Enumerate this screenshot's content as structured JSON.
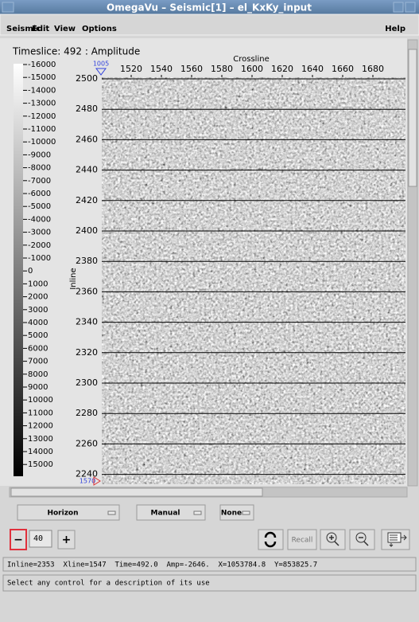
{
  "window": {
    "title": "OmegaVu – Seismic[1] – el_KxKy_input"
  },
  "menu": {
    "items": [
      "Seismic",
      "Edit",
      "View",
      "Options"
    ],
    "help": "Help"
  },
  "plot": {
    "title": "Timeslice: 492 : Amplitude",
    "x_label": "Crossline",
    "y_label": "Inline",
    "x_ticks": [
      1520,
      1540,
      1560,
      1580,
      1600,
      1620,
      1640,
      1660,
      1680
    ],
    "y_ticks": [
      2500,
      2480,
      2460,
      2440,
      2420,
      2400,
      2380,
      2360,
      2340,
      2320,
      2300,
      2280,
      2260,
      2240
    ],
    "x_marker": "1005",
    "y_marker": "1570",
    "colorbar": [
      -16000,
      -15000,
      -14000,
      -13000,
      -12000,
      -11000,
      -10000,
      -9000,
      -8000,
      -7000,
      -6000,
      -5000,
      -4000,
      -3000,
      -2000,
      -1000,
      0,
      1000,
      2000,
      3000,
      4000,
      5000,
      6000,
      7000,
      8000,
      9000,
      10000,
      11000,
      12000,
      13000,
      14000,
      15000
    ]
  },
  "controls": {
    "dropdowns": [
      "Horizon",
      "Manual",
      "None"
    ],
    "minus": "−",
    "step": "40",
    "plus": "+",
    "recall": "Recall"
  },
  "status": "Inline=2353  Xline=1547  Time=492.0  Amp=-2646.  X=1053784.8  Y=853825.7",
  "help_line": "Select any control for a description of its use"
}
